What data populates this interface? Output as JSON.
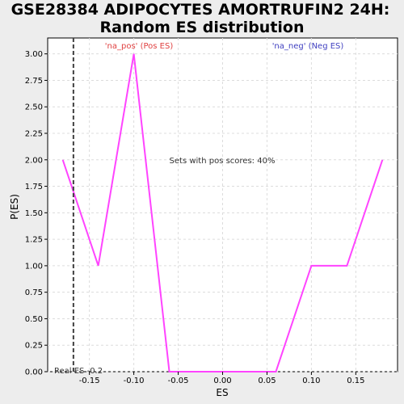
{
  "chart_data": {
    "type": "line",
    "title_line1": "GSE28384 ADIPOCYTES AMORTRUFIN2 24H:",
    "title_line2": "Random ES distribution",
    "xlabel": "ES",
    "ylabel": "P(ES)",
    "xlim": [
      -0.197,
      0.197
    ],
    "ylim": [
      0,
      3.15
    ],
    "x_ticks": [
      -0.15,
      -0.1,
      -0.05,
      0.0,
      0.05,
      0.1,
      0.15
    ],
    "x_tick_labels": [
      "-0.15",
      "-0.10",
      "-0.05",
      "0.00",
      "0.05",
      "0.10",
      "0.15"
    ],
    "y_ticks": [
      0,
      0.25,
      0.5,
      0.75,
      1.0,
      1.25,
      1.5,
      1.75,
      2.0,
      2.25,
      2.5,
      2.75,
      3.0
    ],
    "y_tick_labels": [
      "0.00",
      "0.25",
      "0.50",
      "0.75",
      "1.00",
      "1.25",
      "1.50",
      "1.75",
      "2.00",
      "2.25",
      "2.50",
      "2.75",
      "3.00"
    ],
    "grid": true,
    "series": [
      {
        "color": "#ff44ff",
        "x": [
          -0.18,
          -0.14,
          -0.1,
          -0.06,
          -0.02,
          0.02,
          0.06,
          0.1,
          0.14,
          0.18
        ],
        "y": [
          2.0,
          1.0,
          3.0,
          0.0,
          0.0,
          0.0,
          0.0,
          1.0,
          1.0,
          2.0
        ]
      }
    ],
    "real_es": -0.168,
    "real_es_label": "Real ES -0.2",
    "annotations": {
      "na_pos": "'na_pos' (Pos ES)",
      "na_neg": "'na_neg' (Neg ES)",
      "pos_scores": "Sets with pos scores: 40%"
    },
    "colors": {
      "na_pos": "#e04040",
      "na_neg": "#4040c0",
      "real_es_line": "#404040",
      "plot_bg": "#ffffff",
      "page_bg": "#ededed",
      "grid": "#dcdcdc"
    }
  }
}
